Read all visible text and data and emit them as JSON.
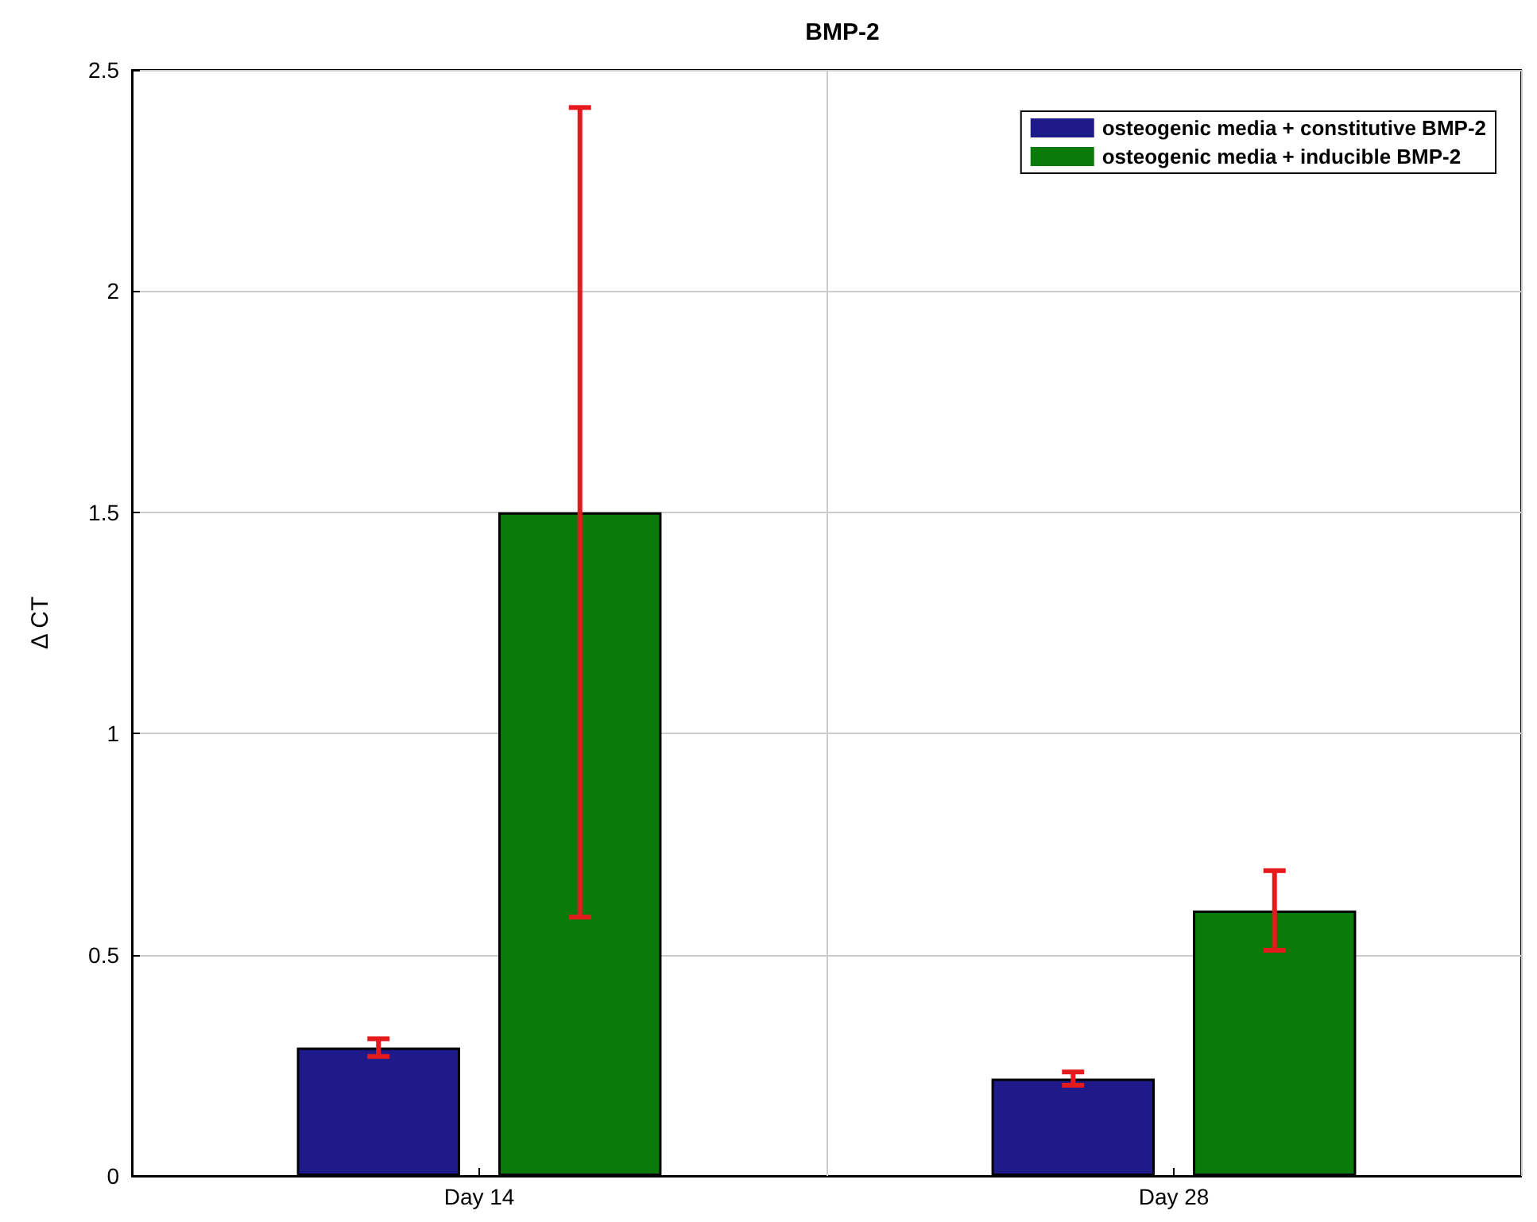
{
  "chart_data": {
    "type": "bar",
    "title": "BMP-2",
    "ylabel": "Δ CT",
    "categories": [
      "Day 14",
      "Day 28"
    ],
    "series": [
      {
        "name": "osteogenic media + constitutive BMP-2",
        "color": "#1f1a8a",
        "values": [
          0.29,
          0.22
        ],
        "errors": [
          0.02,
          0.015
        ]
      },
      {
        "name": "osteogenic media + inducible BMP-2",
        "color": "#0a7a0a",
        "values": [
          1.5,
          0.6
        ],
        "errors": [
          0.915,
          0.09
        ]
      }
    ],
    "ylim": [
      0,
      2.5
    ],
    "yticks": [
      0,
      0.5,
      1,
      1.5,
      2,
      2.5
    ],
    "grid": true,
    "legend": "top right"
  }
}
